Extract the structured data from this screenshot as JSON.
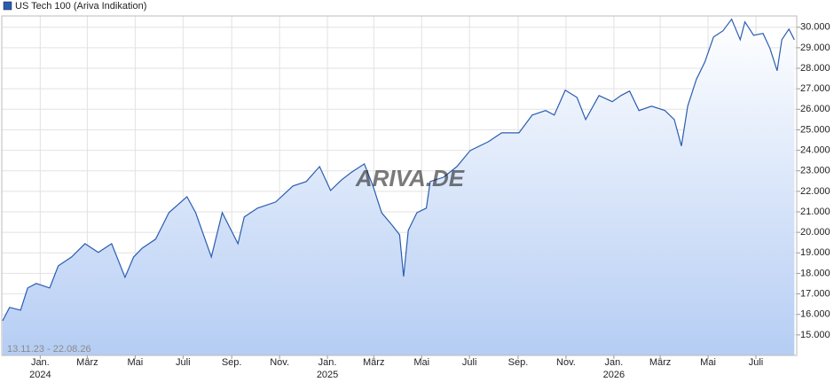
{
  "chart_data": {
    "type": "area",
    "legend": "top-left",
    "range_label": "13.11.23 - 22.08.26",
    "watermark": "ARIVA.DE",
    "grid": true,
    "xlim": [
      "2023-11-13",
      "2026-08-22"
    ],
    "ylim": [
      14000,
      30550
    ],
    "yticks": [
      {
        "value": 15000,
        "label": "15.000"
      },
      {
        "value": 16000,
        "label": "16.000"
      },
      {
        "value": 17000,
        "label": "17.000"
      },
      {
        "value": 18000,
        "label": "18.000"
      },
      {
        "value": 19000,
        "label": "19.000"
      },
      {
        "value": 20000,
        "label": "20.000"
      },
      {
        "value": 21000,
        "label": "21.000"
      },
      {
        "value": 22000,
        "label": "22.000"
      },
      {
        "value": 23000,
        "label": "23.000"
      },
      {
        "value": 24000,
        "label": "24.000"
      },
      {
        "value": 25000,
        "label": "25.000"
      },
      {
        "value": 26000,
        "label": "26.000"
      },
      {
        "value": 27000,
        "label": "27.000"
      },
      {
        "value": 28000,
        "label": "28.000"
      },
      {
        "value": 29000,
        "label": "29.000"
      },
      {
        "value": 30000,
        "label": "30.000"
      }
    ],
    "xticks": [
      {
        "value": "2024-01-01",
        "label": "Jan."
      },
      {
        "value": "2024-03-01",
        "label": "März"
      },
      {
        "value": "2024-05-01",
        "label": "Mai"
      },
      {
        "value": "2024-07-01",
        "label": "Juli"
      },
      {
        "value": "2024-09-01",
        "label": "Sep."
      },
      {
        "value": "2024-11-01",
        "label": "Nov."
      },
      {
        "value": "2025-01-01",
        "label": "Jan."
      },
      {
        "value": "2025-03-01",
        "label": "März"
      },
      {
        "value": "2025-05-01",
        "label": "Mai"
      },
      {
        "value": "2025-07-01",
        "label": "Juli"
      },
      {
        "value": "2025-09-01",
        "label": "Sep."
      },
      {
        "value": "2025-11-01",
        "label": "Nov."
      },
      {
        "value": "2026-01-01",
        "label": "Jan."
      },
      {
        "value": "2026-03-01",
        "label": "März"
      },
      {
        "value": "2026-05-01",
        "label": "Mai"
      },
      {
        "value": "2026-07-01",
        "label": "Juli"
      }
    ],
    "x_year_labels": [
      {
        "value": "2024-01-01",
        "label": "2024"
      },
      {
        "value": "2025-01-01",
        "label": "2025"
      },
      {
        "value": "2026-01-01",
        "label": "2026"
      }
    ],
    "x": [
      "2023-11-14",
      "2023-11-23",
      "2023-12-07",
      "2023-12-16",
      "2023-12-27",
      "2024-01-13",
      "2024-01-24",
      "2024-02-10",
      "2024-02-27",
      "2024-03-15",
      "2024-04-01",
      "2024-04-18",
      "2024-04-29",
      "2024-05-10",
      "2024-05-27",
      "2024-06-13",
      "2024-07-06",
      "2024-07-17",
      "2024-08-06",
      "2024-08-20",
      "2024-09-09",
      "2024-09-17",
      "2024-10-04",
      "2024-10-27",
      "2024-11-18",
      "2024-12-05",
      "2024-12-22",
      "2025-01-05",
      "2025-01-19",
      "2025-01-31",
      "2025-02-17",
      "2025-02-28",
      "2025-03-11",
      "2025-03-25",
      "2025-04-03",
      "2025-04-08",
      "2025-04-14",
      "2025-04-25",
      "2025-05-07",
      "2025-05-12",
      "2025-05-29",
      "2025-06-15",
      "2025-07-02",
      "2025-07-25",
      "2025-08-11",
      "2025-09-02",
      "2025-09-19",
      "2025-10-06",
      "2025-10-17",
      "2025-10-31",
      "2025-11-15",
      "2025-11-26",
      "2025-12-13",
      "2025-12-30",
      "2026-01-10",
      "2026-01-21",
      "2026-02-02",
      "2026-02-18",
      "2026-03-07",
      "2026-03-19",
      "2026-03-28",
      "2026-04-05",
      "2026-04-16",
      "2026-04-27",
      "2026-05-08",
      "2026-05-20",
      "2026-05-31",
      "2026-06-11",
      "2026-06-17",
      "2026-06-28",
      "2026-07-10",
      "2026-07-19",
      "2026-07-28",
      "2026-08-03",
      "2026-08-12",
      "2026-08-19"
    ],
    "series": [
      {
        "name": "US Tech 100 (Ariva Indikation)",
        "color": "#2a5db0",
        "values": [
          15690,
          16340,
          16210,
          17290,
          17510,
          17290,
          18370,
          18800,
          19450,
          19020,
          19450,
          17810,
          18800,
          19230,
          19670,
          20960,
          21740,
          20960,
          18800,
          20960,
          19450,
          20750,
          21180,
          21480,
          22260,
          22480,
          23210,
          22040,
          22560,
          22910,
          23340,
          22260,
          20960,
          20320,
          19880,
          17850,
          20100,
          20960,
          21180,
          22480,
          22690,
          23210,
          23990,
          24420,
          24850,
          24850,
          25720,
          25940,
          25720,
          26930,
          26580,
          25500,
          26670,
          26370,
          26670,
          26890,
          25940,
          26150,
          25940,
          25500,
          24210,
          26150,
          27450,
          28310,
          29520,
          29830,
          30390,
          29390,
          30260,
          29610,
          29700,
          28960,
          27880,
          29390,
          29910,
          29390
        ]
      }
    ]
  }
}
